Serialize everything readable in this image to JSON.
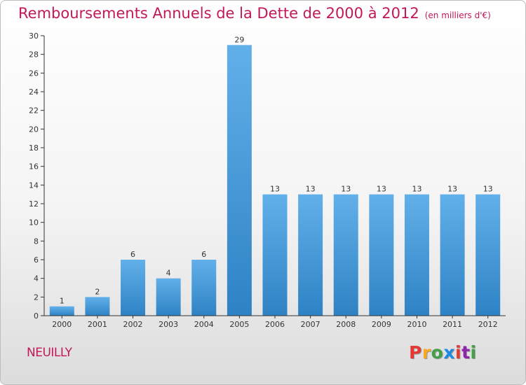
{
  "chart_data": {
    "type": "bar",
    "title": "Remboursements Annuels de la Dette de 2000 à 2012",
    "subtitle": "(en milliers d'€)",
    "categories": [
      "2000",
      "2001",
      "2002",
      "2003",
      "2004",
      "2005",
      "2006",
      "2007",
      "2008",
      "2009",
      "2010",
      "2011",
      "2012"
    ],
    "values": [
      1,
      2,
      6,
      4,
      6,
      29,
      13,
      13,
      13,
      13,
      13,
      13,
      13
    ],
    "ylim": [
      0,
      30
    ],
    "yticks": [
      0,
      2,
      4,
      6,
      8,
      10,
      12,
      14,
      16,
      18,
      20,
      22,
      24,
      26,
      28,
      30
    ],
    "xlabel": "",
    "ylabel": "",
    "grid": false
  },
  "place": "NEUILLY",
  "logo": {
    "letters": [
      "P",
      "r",
      "o",
      "x",
      "i",
      "t",
      "i"
    ],
    "colors": [
      "#e53935",
      "#f9a825",
      "#43a047",
      "#1e88e5",
      "#e53935",
      "#8e24aa",
      "#43a047"
    ]
  },
  "colors": {
    "bar_light": "#62b0ea",
    "bar_dark": "#2e82c4",
    "axis": "#333333",
    "accent": "#c2185b"
  }
}
